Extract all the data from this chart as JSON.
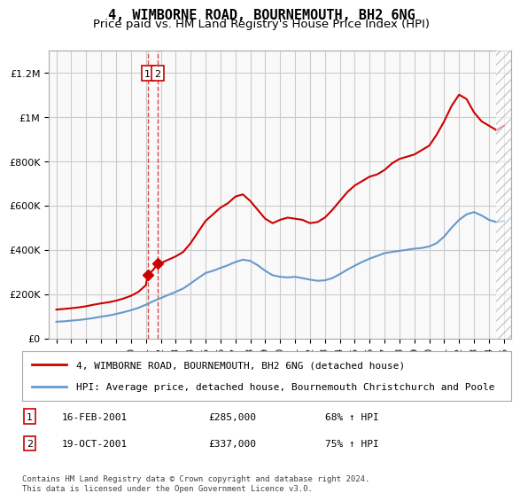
{
  "title": "4, WIMBORNE ROAD, BOURNEMOUTH, BH2 6NG",
  "subtitle": "Price paid vs. HM Land Registry's House Price Index (HPI)",
  "xlabel": "",
  "ylabel": "",
  "ylim": [
    0,
    1300000
  ],
  "yticks": [
    0,
    200000,
    400000,
    600000,
    800000,
    1000000,
    1200000
  ],
  "ytick_labels": [
    "£0",
    "£200K",
    "£400K",
    "£600K",
    "£800K",
    "£1M",
    "£1.2M"
  ],
  "background_color": "#ffffff",
  "plot_bg_color": "#f9f9f9",
  "grid_color": "#cccccc",
  "red_line_color": "#cc0000",
  "blue_line_color": "#6699cc",
  "transaction_color": "#cc0000",
  "dashed_line_color": "#cc0000",
  "legend_label_red": "4, WIMBORNE ROAD, BOURNEMOUTH, BH2 6NG (detached house)",
  "legend_label_blue": "HPI: Average price, detached house, Bournemouth Christchurch and Poole",
  "footer_text": "Contains HM Land Registry data © Crown copyright and database right 2024.\nThis data is licensed under the Open Government Licence v3.0.",
  "transactions": [
    {
      "id": 1,
      "date_num": 2001.12,
      "price": 285000,
      "date_str": "16-FEB-2001",
      "pct": "68%",
      "dir": "↑"
    },
    {
      "id": 2,
      "date_num": 2001.79,
      "price": 337000,
      "date_str": "19-OCT-2001",
      "pct": "75%",
      "dir": "↑"
    }
  ],
  "red_x": [
    1995.0,
    1995.5,
    1996.0,
    1996.5,
    1997.0,
    1997.5,
    1998.0,
    1998.5,
    1999.0,
    1999.5,
    2000.0,
    2000.5,
    2001.0,
    2001.12,
    2001.5,
    2001.79,
    2002.0,
    2002.5,
    2003.0,
    2003.5,
    2004.0,
    2004.5,
    2005.0,
    2005.5,
    2006.0,
    2006.5,
    2007.0,
    2007.5,
    2008.0,
    2008.5,
    2009.0,
    2009.5,
    2010.0,
    2010.5,
    2011.0,
    2011.5,
    2012.0,
    2012.5,
    2013.0,
    2013.5,
    2014.0,
    2014.5,
    2015.0,
    2015.5,
    2016.0,
    2016.5,
    2017.0,
    2017.5,
    2018.0,
    2018.5,
    2019.0,
    2019.5,
    2020.0,
    2020.5,
    2021.0,
    2021.5,
    2022.0,
    2022.5,
    2023.0,
    2023.5,
    2024.0,
    2024.5,
    2025.0
  ],
  "red_y": [
    130000,
    133000,
    136000,
    140000,
    145000,
    152000,
    158000,
    163000,
    170000,
    180000,
    192000,
    210000,
    240000,
    285000,
    310000,
    337000,
    340000,
    355000,
    370000,
    390000,
    430000,
    480000,
    530000,
    560000,
    590000,
    610000,
    640000,
    650000,
    620000,
    580000,
    540000,
    520000,
    535000,
    545000,
    540000,
    535000,
    520000,
    525000,
    545000,
    580000,
    620000,
    660000,
    690000,
    710000,
    730000,
    740000,
    760000,
    790000,
    810000,
    820000,
    830000,
    850000,
    870000,
    920000,
    980000,
    1050000,
    1100000,
    1080000,
    1020000,
    980000,
    960000,
    940000,
    960000
  ],
  "blue_x": [
    1995.0,
    1995.5,
    1996.0,
    1996.5,
    1997.0,
    1997.5,
    1998.0,
    1998.5,
    1999.0,
    1999.5,
    2000.0,
    2000.5,
    2001.0,
    2001.5,
    2002.0,
    2002.5,
    2003.0,
    2003.5,
    2004.0,
    2004.5,
    2005.0,
    2005.5,
    2006.0,
    2006.5,
    2007.0,
    2007.5,
    2008.0,
    2008.5,
    2009.0,
    2009.5,
    2010.0,
    2010.5,
    2011.0,
    2011.5,
    2012.0,
    2012.5,
    2013.0,
    2013.5,
    2014.0,
    2014.5,
    2015.0,
    2015.5,
    2016.0,
    2016.5,
    2017.0,
    2017.5,
    2018.0,
    2018.5,
    2019.0,
    2019.5,
    2020.0,
    2020.5,
    2021.0,
    2021.5,
    2022.0,
    2022.5,
    2023.0,
    2023.5,
    2024.0,
    2024.5,
    2025.0
  ],
  "blue_y": [
    75000,
    77000,
    80000,
    83000,
    87000,
    92000,
    98000,
    103000,
    110000,
    118000,
    127000,
    138000,
    152000,
    168000,
    182000,
    196000,
    210000,
    225000,
    248000,
    272000,
    295000,
    305000,
    318000,
    330000,
    345000,
    355000,
    350000,
    330000,
    305000,
    285000,
    278000,
    275000,
    278000,
    272000,
    265000,
    260000,
    262000,
    272000,
    290000,
    310000,
    328000,
    345000,
    360000,
    372000,
    385000,
    390000,
    395000,
    400000,
    405000,
    408000,
    415000,
    430000,
    460000,
    500000,
    535000,
    560000,
    570000,
    555000,
    535000,
    525000,
    530000
  ],
  "xlim": [
    1994.5,
    2025.5
  ],
  "xticks": [
    1995,
    1996,
    1997,
    1998,
    1999,
    2000,
    2001,
    2002,
    2003,
    2004,
    2005,
    2006,
    2007,
    2008,
    2009,
    2010,
    2011,
    2012,
    2013,
    2014,
    2015,
    2016,
    2017,
    2018,
    2019,
    2020,
    2021,
    2022,
    2023,
    2024,
    2025
  ]
}
